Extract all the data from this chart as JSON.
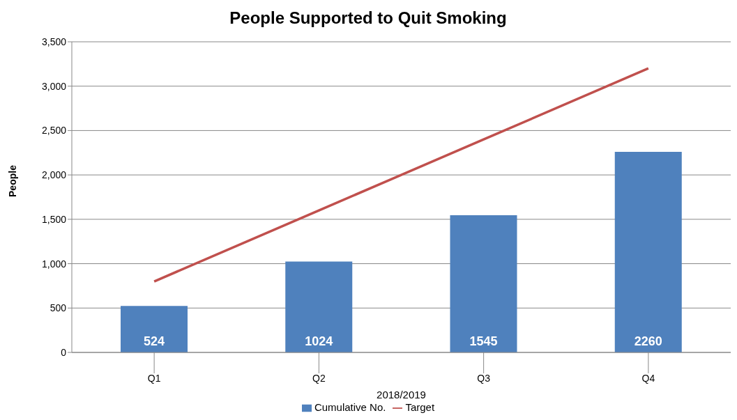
{
  "chart_data": {
    "type": "bar",
    "title": "People Supported to Quit Smoking",
    "xlabel": "2018/2019",
    "ylabel": "People",
    "categories": [
      "Q1",
      "Q2",
      "Q3",
      "Q4"
    ],
    "series": [
      {
        "name": "Cumulative No.",
        "color": "#4f81bd",
        "values": [
          524,
          1024,
          1545,
          2260
        ],
        "data_labels": true
      },
      {
        "name": "Target",
        "type": "line",
        "color": "#c0504d",
        "values": [
          800,
          1600,
          2400,
          3200
        ],
        "marker": "none"
      }
    ],
    "ylim": [
      0,
      3500
    ],
    "yticks": [
      {
        "value": 0,
        "label": "0"
      },
      {
        "value": 500,
        "label": "500"
      },
      {
        "value": 1000,
        "label": "1,000"
      },
      {
        "value": 1500,
        "label": "1,500"
      },
      {
        "value": 2000,
        "label": "2,000"
      },
      {
        "value": 2500,
        "label": "2,500"
      },
      {
        "value": 3000,
        "label": "3,000"
      },
      {
        "value": 3500,
        "label": "3,500"
      }
    ],
    "grid": "y",
    "legend": "bottom"
  }
}
